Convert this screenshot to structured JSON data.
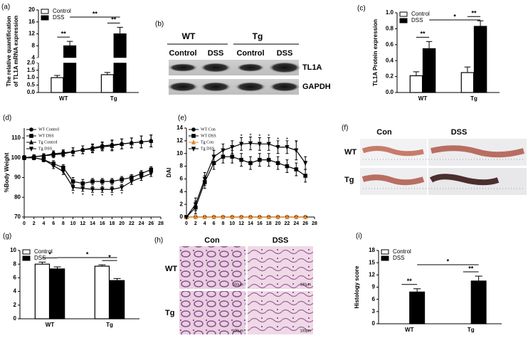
{
  "chart_data": [
    {
      "type": "bar",
      "panel_label": "(a)",
      "ylabel": [
        "The relative quantification",
        "of TL1A mRNA expression"
      ],
      "categories": [
        "WT",
        "Tg"
      ],
      "series": [
        {
          "name": "Control",
          "color": "#ffffff",
          "values": [
            1.0,
            1.2
          ],
          "errors": [
            0.15,
            0.15
          ]
        },
        {
          "name": "DSS",
          "color": "#000000",
          "values": [
            8,
            12
          ],
          "errors": [
            1.5,
            2.2
          ]
        }
      ],
      "y_segments": [
        {
          "ylim": [
            0,
            2
          ],
          "yticks": [
            {
              "value": 0,
              "label": "0.0"
            },
            0.5,
            {
              "value": 1,
              "label": "1.0"
            },
            1.5,
            {
              "value": 2,
              "label": "2.0"
            }
          ]
        },
        {
          "ylim": [
            4,
            20
          ],
          "yticks": [
            4,
            8,
            12,
            16,
            20
          ]
        }
      ],
      "legend": "upper left",
      "annotations": [
        "**",
        "**",
        "**"
      ]
    },
    {
      "type": "bar",
      "panel_label": "(c)",
      "ylabel": [
        "TL1A Protein expression"
      ],
      "categories": [
        "WT",
        "Tg"
      ],
      "series": [
        {
          "name": "Control",
          "color": "#ffffff",
          "values": [
            0.21,
            0.25
          ],
          "errors": [
            0.05,
            0.07
          ]
        },
        {
          "name": "DSS",
          "color": "#000000",
          "values": [
            0.55,
            0.83
          ],
          "errors": [
            0.09,
            0.07
          ]
        }
      ],
      "ylim": [
        0,
        1
      ],
      "yticks": [
        {
          "value": 0,
          "label": "0.0"
        },
        0.2,
        0.4,
        0.6,
        0.8,
        {
          "value": 1,
          "label": "1.0"
        }
      ],
      "legend": "upper left",
      "annotations": [
        "**",
        "**",
        "*"
      ]
    },
    {
      "type": "line",
      "panel_label": "(d)",
      "ylabel": [
        "%Body Weight"
      ],
      "x": [
        0,
        2,
        4,
        6,
        8,
        10,
        12,
        14,
        16,
        18,
        20,
        22,
        24,
        26
      ],
      "xlim": [
        0,
        28
      ],
      "xticks": [
        0,
        2,
        4,
        6,
        8,
        10,
        12,
        14,
        16,
        18,
        20,
        22,
        24,
        26,
        28
      ],
      "ylim": [
        70,
        115
      ],
      "yticks": [
        70,
        80,
        90,
        100,
        110
      ],
      "series": [
        {
          "name": "WT Control",
          "color": "#000000",
          "marker": "circle",
          "values": [
            100,
            100.5,
            101,
            102,
            102.5,
            103,
            104,
            105,
            106,
            106.5,
            107,
            107.5,
            108,
            108.5
          ],
          "errors": [
            1,
            1,
            1,
            1.5,
            1.5,
            2,
            2,
            2,
            2,
            2.5,
            2.5,
            2.5,
            3,
            3
          ]
        },
        {
          "name": "WT DSS",
          "color": "#000000",
          "marker": "square",
          "values": [
            100,
            100,
            99,
            97,
            95,
            88,
            87,
            88,
            88,
            88,
            89,
            90,
            92,
            94
          ],
          "errors": [
            1,
            1,
            1,
            1.5,
            1.5,
            2,
            2,
            1.5,
            1.5,
            1.5,
            1.5,
            1.5,
            1.5,
            1.5
          ]
        },
        {
          "name": "Tg Control",
          "color": "#000000",
          "marker": "triangle",
          "values": [
            100,
            100.5,
            101,
            101.5,
            102,
            103,
            104,
            104.5,
            105.5,
            106,
            107,
            107.5,
            108,
            108.5
          ],
          "errors": [
            1,
            1,
            1,
            1.5,
            1.5,
            2,
            2,
            2,
            2,
            2.5,
            2.5,
            2.5,
            3,
            3
          ]
        },
        {
          "name": "Tg DSS",
          "color": "#000000",
          "marker": "triangle-down",
          "values": [
            100,
            100,
            99,
            96,
            93,
            85,
            84.5,
            84,
            84,
            84,
            85,
            88,
            90,
            92
          ],
          "errors": [
            1,
            1,
            1,
            1.5,
            1.5,
            1.5,
            1.5,
            1.5,
            1.5,
            1.5,
            1.5,
            1.5,
            1.5,
            1.5
          ]
        }
      ],
      "legend": "upper left",
      "annotations": [
        "*",
        "*",
        "*",
        "*",
        "*",
        "*"
      ]
    },
    {
      "type": "line",
      "panel_label": "(e)",
      "ylabel": [
        "DAI"
      ],
      "x": [
        0,
        2,
        4,
        6,
        8,
        10,
        12,
        14,
        16,
        18,
        20,
        22,
        24,
        26
      ],
      "xlim": [
        0,
        28
      ],
      "xticks": [
        0,
        2,
        4,
        6,
        8,
        10,
        12,
        14,
        16,
        18,
        20,
        22,
        24,
        26,
        28
      ],
      "ylim": [
        0,
        14
      ],
      "yticks": [
        0,
        2,
        4,
        6,
        8,
        10,
        12,
        14
      ],
      "series": [
        {
          "name": "WT Con",
          "color": "#000000",
          "marker": "circle",
          "values": [
            0,
            0,
            0,
            0,
            0,
            0,
            0,
            0,
            0,
            0,
            0,
            0,
            0,
            0
          ],
          "errors": [
            0,
            0,
            0,
            0,
            0,
            0,
            0,
            0,
            0,
            0,
            0,
            0,
            0,
            0
          ]
        },
        {
          "name": "WT DSS",
          "color": "#000000",
          "marker": "square",
          "values": [
            0,
            1.5,
            5.5,
            8.5,
            9.5,
            9.5,
            9,
            8.5,
            9,
            9,
            8.5,
            8,
            7.5,
            6.5
          ],
          "errors": [
            0,
            1,
            1,
            1,
            1,
            1,
            1,
            1,
            1,
            1,
            1,
            1,
            1,
            1
          ]
        },
        {
          "name": "Tg Con",
          "color": "#e08a2c",
          "marker": "triangle",
          "values": [
            0,
            0,
            0,
            0,
            0,
            0,
            0,
            0,
            0,
            0,
            0,
            0,
            0,
            0
          ],
          "errors": [
            0,
            0,
            0,
            0,
            0,
            0,
            0,
            0,
            0,
            0,
            0,
            0,
            0,
            0
          ]
        },
        {
          "name": "Tg DSS",
          "color": "#000000",
          "marker": "triangle-down",
          "values": [
            0,
            2,
            6,
            9.5,
            10.5,
            11,
            11.5,
            11.6,
            11.5,
            11.5,
            11,
            11,
            10.5,
            8.5
          ],
          "errors": [
            0,
            1,
            1,
            1,
            1,
            1,
            1,
            1,
            1,
            1,
            1,
            1,
            1.5,
            1
          ]
        }
      ],
      "legend": "upper left",
      "annotations": [
        "*",
        "*",
        "*",
        "*",
        "*",
        "*",
        "*"
      ]
    },
    {
      "type": "bar",
      "panel_label": "(g)",
      "categories": [
        "WT",
        "Tg"
      ],
      "series": [
        {
          "name": "Control",
          "color": "#ffffff",
          "values": [
            8.0,
            7.7
          ],
          "errors": [
            0.3,
            0.2
          ]
        },
        {
          "name": "DSS",
          "color": "#000000",
          "values": [
            7.3,
            5.6
          ],
          "errors": [
            0.3,
            0.3
          ]
        }
      ],
      "ylim": [
        0,
        10
      ],
      "yticks": [
        0,
        2,
        4,
        6,
        8,
        10
      ],
      "legend": "upper left",
      "annotations": [
        "*",
        "*",
        "*"
      ]
    },
    {
      "type": "bar",
      "panel_label": "(i)",
      "ylabel": [
        "Histology score"
      ],
      "categories": [
        "WT",
        "Tg"
      ],
      "series": [
        {
          "name": "Control",
          "color": "#ffffff",
          "values": [
            0,
            0
          ],
          "errors": [
            0,
            0
          ]
        },
        {
          "name": "DSS",
          "color": "#000000",
          "values": [
            7.8,
            10.5
          ],
          "errors": [
            0.8,
            1.2
          ]
        }
      ],
      "ylim": [
        0,
        18
      ],
      "yticks": [
        0,
        3,
        6,
        9,
        12,
        15,
        18
      ],
      "legend": "upper left",
      "annotations": [
        "**",
        "**",
        "*"
      ]
    }
  ],
  "blot": {
    "panel_label": "(b)",
    "groups": [
      "WT",
      "Tg"
    ],
    "lanes": [
      "Control",
      "DSS",
      "Control",
      "DSS"
    ],
    "bands": [
      "TL1A",
      "GAPDH"
    ]
  },
  "photo": {
    "panel_label": "(f)",
    "columns": [
      "Con",
      "DSS"
    ],
    "rows": [
      "WT",
      "Tg"
    ]
  },
  "histology": {
    "panel_label": "(h)",
    "columns": [
      "Con",
      "DSS"
    ],
    "rows": [
      "WT",
      "Tg"
    ],
    "scale_bar": "100μm"
  }
}
